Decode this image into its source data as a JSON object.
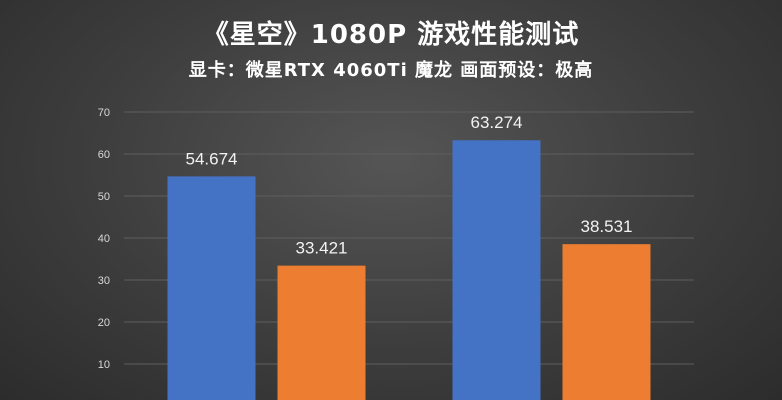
{
  "header": {
    "title": "《星空》1080P 游戏性能测试",
    "subtitle": "显卡：微星RTX 4060Ti 魔龙 画面预设：极高"
  },
  "colors": {
    "series1": "#4472c4",
    "series2": "#ed7d31",
    "gridline": "#5e5e5e"
  },
  "chart_data": {
    "type": "bar",
    "title": "《星空》1080P 游戏性能测试",
    "subtitle": "显卡：微星RTX 4060Ti 魔龙 画面预设：极高",
    "categories": [
      "",
      ""
    ],
    "series": [
      {
        "values": [
          54.674,
          63.274
        ]
      },
      {
        "values": [
          33.421,
          38.531
        ]
      }
    ],
    "yticks": [
      10,
      20,
      30,
      40,
      50,
      60,
      70
    ],
    "ylim": [
      0,
      70
    ],
    "grid": true,
    "legend": "none"
  }
}
